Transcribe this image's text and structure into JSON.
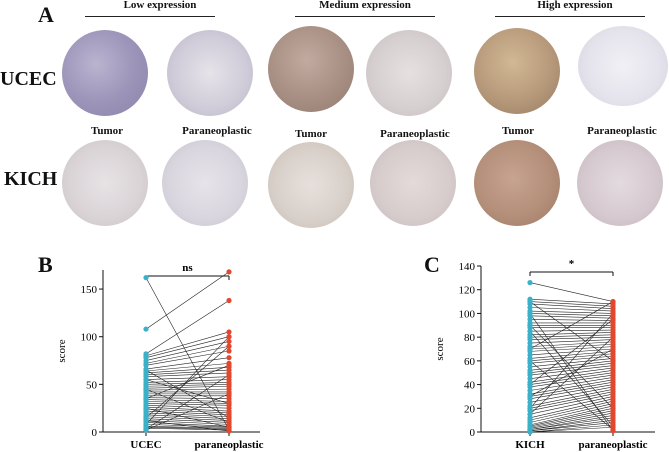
{
  "panel_labels": {
    "a": "A",
    "b": "B",
    "c": "C"
  },
  "groups": [
    {
      "title": "Low expression"
    },
    {
      "title": "Medium expression"
    },
    {
      "title": "High expression"
    }
  ],
  "row_labels": {
    "ucec": "UCEC",
    "kich": "KICH"
  },
  "column_labels": [
    "Tumor",
    "Paraneoplastic",
    "Tumor",
    "Paraneoplastic",
    "Tumor",
    "Paraneoplastic"
  ],
  "top_column_labels": [
    "Tumor",
    "Paraneoplastic",
    "Tumor",
    "Paraneoplastic",
    "Tumor",
    "Paraneoplastic"
  ],
  "tissue_colors": {
    "ucec": [
      "#9b93b8",
      "#cfcbd8",
      "#a88f83",
      "#d6cfd0",
      "#b6997a",
      "#e4e3ec"
    ],
    "kich": [
      "#d9d3d6",
      "#d8d5de",
      "#d8cfc9",
      "#d7cccc",
      "#b48f7a",
      "#d5c9cf"
    ]
  },
  "chart_data": [
    {
      "type": "scatter",
      "subtype": "paired-dot",
      "categories": [
        "UCEC",
        "paraneoplastic"
      ],
      "ylabel": "score",
      "yticks": [
        0,
        50,
        100,
        150
      ],
      "ylim": [
        0,
        170
      ],
      "significance": "ns",
      "colors": [
        "#3bb0c9",
        "#e3482f"
      ],
      "pairs": [
        [
          162,
          2
        ],
        [
          108,
          168
        ],
        [
          82,
          138
        ],
        [
          80,
          105
        ],
        [
          78,
          100
        ],
        [
          75,
          95
        ],
        [
          72,
          90
        ],
        [
          70,
          85
        ],
        [
          66,
          78
        ],
        [
          64,
          72
        ],
        [
          62,
          68
        ],
        [
          60,
          65
        ],
        [
          58,
          62
        ],
        [
          55,
          58
        ],
        [
          52,
          55
        ],
        [
          50,
          52
        ],
        [
          48,
          50
        ],
        [
          46,
          48
        ],
        [
          44,
          45
        ],
        [
          42,
          42
        ],
        [
          40,
          40
        ],
        [
          38,
          38
        ],
        [
          36,
          35
        ],
        [
          34,
          32
        ],
        [
          32,
          30
        ],
        [
          30,
          28
        ],
        [
          28,
          25
        ],
        [
          26,
          22
        ],
        [
          24,
          20
        ],
        [
          22,
          18
        ],
        [
          20,
          16
        ],
        [
          18,
          14
        ],
        [
          16,
          12
        ],
        [
          14,
          10
        ],
        [
          12,
          8
        ],
        [
          10,
          6
        ],
        [
          8,
          5
        ],
        [
          6,
          4
        ],
        [
          5,
          3
        ],
        [
          4,
          2
        ],
        [
          3,
          60
        ],
        [
          2,
          40
        ],
        [
          15,
          90
        ],
        [
          25,
          5
        ],
        [
          35,
          70
        ],
        [
          45,
          10
        ],
        [
          55,
          30
        ],
        [
          65,
          15
        ],
        [
          8,
          100
        ],
        [
          12,
          1
        ]
      ]
    },
    {
      "type": "scatter",
      "subtype": "paired-dot",
      "categories": [
        "KICH",
        "paraneoplastic"
      ],
      "ylabel": "score",
      "yticks": [
        0,
        20,
        40,
        60,
        80,
        100,
        120,
        140
      ],
      "ylim": [
        0,
        140
      ],
      "significance": "*",
      "colors": [
        "#3bb0c9",
        "#e3482f"
      ],
      "pairs": [
        [
          126,
          110
        ],
        [
          112,
          108
        ],
        [
          110,
          106
        ],
        [
          108,
          104
        ],
        [
          105,
          102
        ],
        [
          102,
          100
        ],
        [
          100,
          98
        ],
        [
          98,
          96
        ],
        [
          95,
          94
        ],
        [
          92,
          92
        ],
        [
          90,
          90
        ],
        [
          88,
          88
        ],
        [
          85,
          86
        ],
        [
          82,
          84
        ],
        [
          80,
          82
        ],
        [
          78,
          80
        ],
        [
          75,
          78
        ],
        [
          72,
          76
        ],
        [
          70,
          74
        ],
        [
          68,
          72
        ],
        [
          65,
          70
        ],
        [
          62,
          68
        ],
        [
          60,
          66
        ],
        [
          58,
          64
        ],
        [
          55,
          62
        ],
        [
          52,
          60
        ],
        [
          50,
          58
        ],
        [
          48,
          56
        ],
        [
          45,
          54
        ],
        [
          42,
          52
        ],
        [
          40,
          50
        ],
        [
          38,
          48
        ],
        [
          35,
          46
        ],
        [
          32,
          44
        ],
        [
          30,
          42
        ],
        [
          28,
          40
        ],
        [
          25,
          38
        ],
        [
          22,
          36
        ],
        [
          20,
          34
        ],
        [
          18,
          32
        ],
        [
          15,
          30
        ],
        [
          12,
          28
        ],
        [
          10,
          26
        ],
        [
          8,
          24
        ],
        [
          6,
          22
        ],
        [
          5,
          20
        ],
        [
          4,
          18
        ],
        [
          3,
          16
        ],
        [
          2,
          14
        ],
        [
          2,
          12
        ],
        [
          1,
          10
        ],
        [
          1,
          8
        ],
        [
          0,
          6
        ],
        [
          0,
          4
        ],
        [
          60,
          2
        ],
        [
          100,
          1
        ],
        [
          70,
          110
        ],
        [
          20,
          100
        ],
        [
          90,
          20
        ],
        [
          40,
          95
        ],
        [
          110,
          60
        ],
        [
          15,
          80
        ],
        [
          85,
          5
        ],
        [
          30,
          70
        ]
      ]
    }
  ]
}
